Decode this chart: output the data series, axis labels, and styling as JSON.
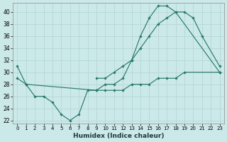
{
  "xlabel": "Humidex (Indice chaleur)",
  "xlim": [
    -0.5,
    23.5
  ],
  "ylim": [
    21.5,
    41.5
  ],
  "yticks": [
    22,
    24,
    26,
    28,
    30,
    32,
    34,
    36,
    38,
    40
  ],
  "xticks": [
    0,
    1,
    2,
    3,
    4,
    5,
    6,
    7,
    8,
    9,
    10,
    11,
    12,
    13,
    14,
    15,
    16,
    17,
    18,
    19,
    20,
    21,
    22,
    23
  ],
  "bg_color": "#cce9e9",
  "line_color": "#2a7a6a",
  "grid_color": "#b8d8d8",
  "lines": [
    {
      "x": [
        0,
        1,
        2,
        3,
        4,
        5,
        6,
        7,
        8,
        9,
        10,
        11,
        12,
        13,
        14,
        15,
        16,
        17,
        18,
        23
      ],
      "y": [
        31,
        28,
        26,
        26,
        25,
        23,
        22,
        23,
        27,
        27,
        28,
        28,
        29,
        32,
        36,
        39,
        41,
        41,
        40,
        30
      ]
    },
    {
      "x": [
        9,
        10,
        11,
        12,
        13,
        14,
        15,
        16,
        17,
        18,
        19,
        20,
        21,
        23
      ],
      "y": [
        29,
        29,
        30,
        31,
        32,
        34,
        36,
        38,
        39,
        40,
        40,
        39,
        36,
        31
      ]
    },
    {
      "x": [
        0,
        1,
        9,
        10,
        11,
        12,
        13,
        14,
        15,
        16,
        17,
        18,
        19,
        23
      ],
      "y": [
        29,
        28,
        27,
        27,
        27,
        27,
        28,
        28,
        28,
        29,
        29,
        29,
        30,
        30
      ]
    }
  ]
}
